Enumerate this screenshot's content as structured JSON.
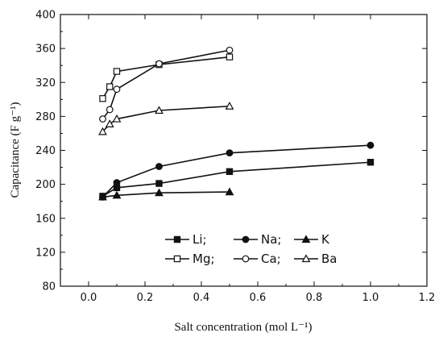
{
  "chart_data": {
    "type": "line",
    "xlabel": "Salt concentration (mol L⁻¹)",
    "ylabel": "Capacitance (F g⁻¹)",
    "xlim": [
      -0.1,
      1.2
    ],
    "ylim": [
      80,
      400
    ],
    "xticks": [
      0.0,
      0.2,
      0.4,
      0.6,
      0.8,
      1.0,
      1.2
    ],
    "xtick_labels": [
      "0.0",
      "0.2",
      "0.4",
      "0.6",
      "0.8",
      "1.0",
      "1.2"
    ],
    "yticks": [
      80,
      120,
      160,
      200,
      240,
      280,
      320,
      360,
      400
    ],
    "ytick_labels": [
      "80",
      "120",
      "160",
      "200",
      "240",
      "280",
      "320",
      "360",
      "400"
    ],
    "legend_position": "lower-right",
    "series": [
      {
        "name": "Li;",
        "marker": "square-filled",
        "x": [
          0.05,
          0.1,
          0.25,
          0.5,
          1.0
        ],
        "y": [
          186,
          196,
          201,
          215,
          226
        ]
      },
      {
        "name": "Na;",
        "marker": "circle-filled",
        "x": [
          0.05,
          0.1,
          0.25,
          0.5,
          1.0
        ],
        "y": [
          185,
          202,
          221,
          237,
          246
        ]
      },
      {
        "name": "K",
        "marker": "triangle-filled",
        "x": [
          0.05,
          0.1,
          0.25,
          0.5
        ],
        "y": [
          185,
          187,
          190,
          191
        ]
      },
      {
        "name": "Mg;",
        "marker": "square-open",
        "x": [
          0.05,
          0.075,
          0.1,
          0.25,
          0.5
        ],
        "y": [
          301,
          315,
          333,
          341,
          350
        ]
      },
      {
        "name": "Ca;",
        "marker": "circle-open",
        "x": [
          0.05,
          0.075,
          0.1,
          0.25,
          0.5
        ],
        "y": [
          277,
          288,
          312,
          342,
          358
        ]
      },
      {
        "name": "Ba",
        "marker": "triangle-open",
        "x": [
          0.05,
          0.075,
          0.1,
          0.25,
          0.5
        ],
        "y": [
          262,
          271,
          277,
          287,
          292
        ]
      }
    ]
  }
}
